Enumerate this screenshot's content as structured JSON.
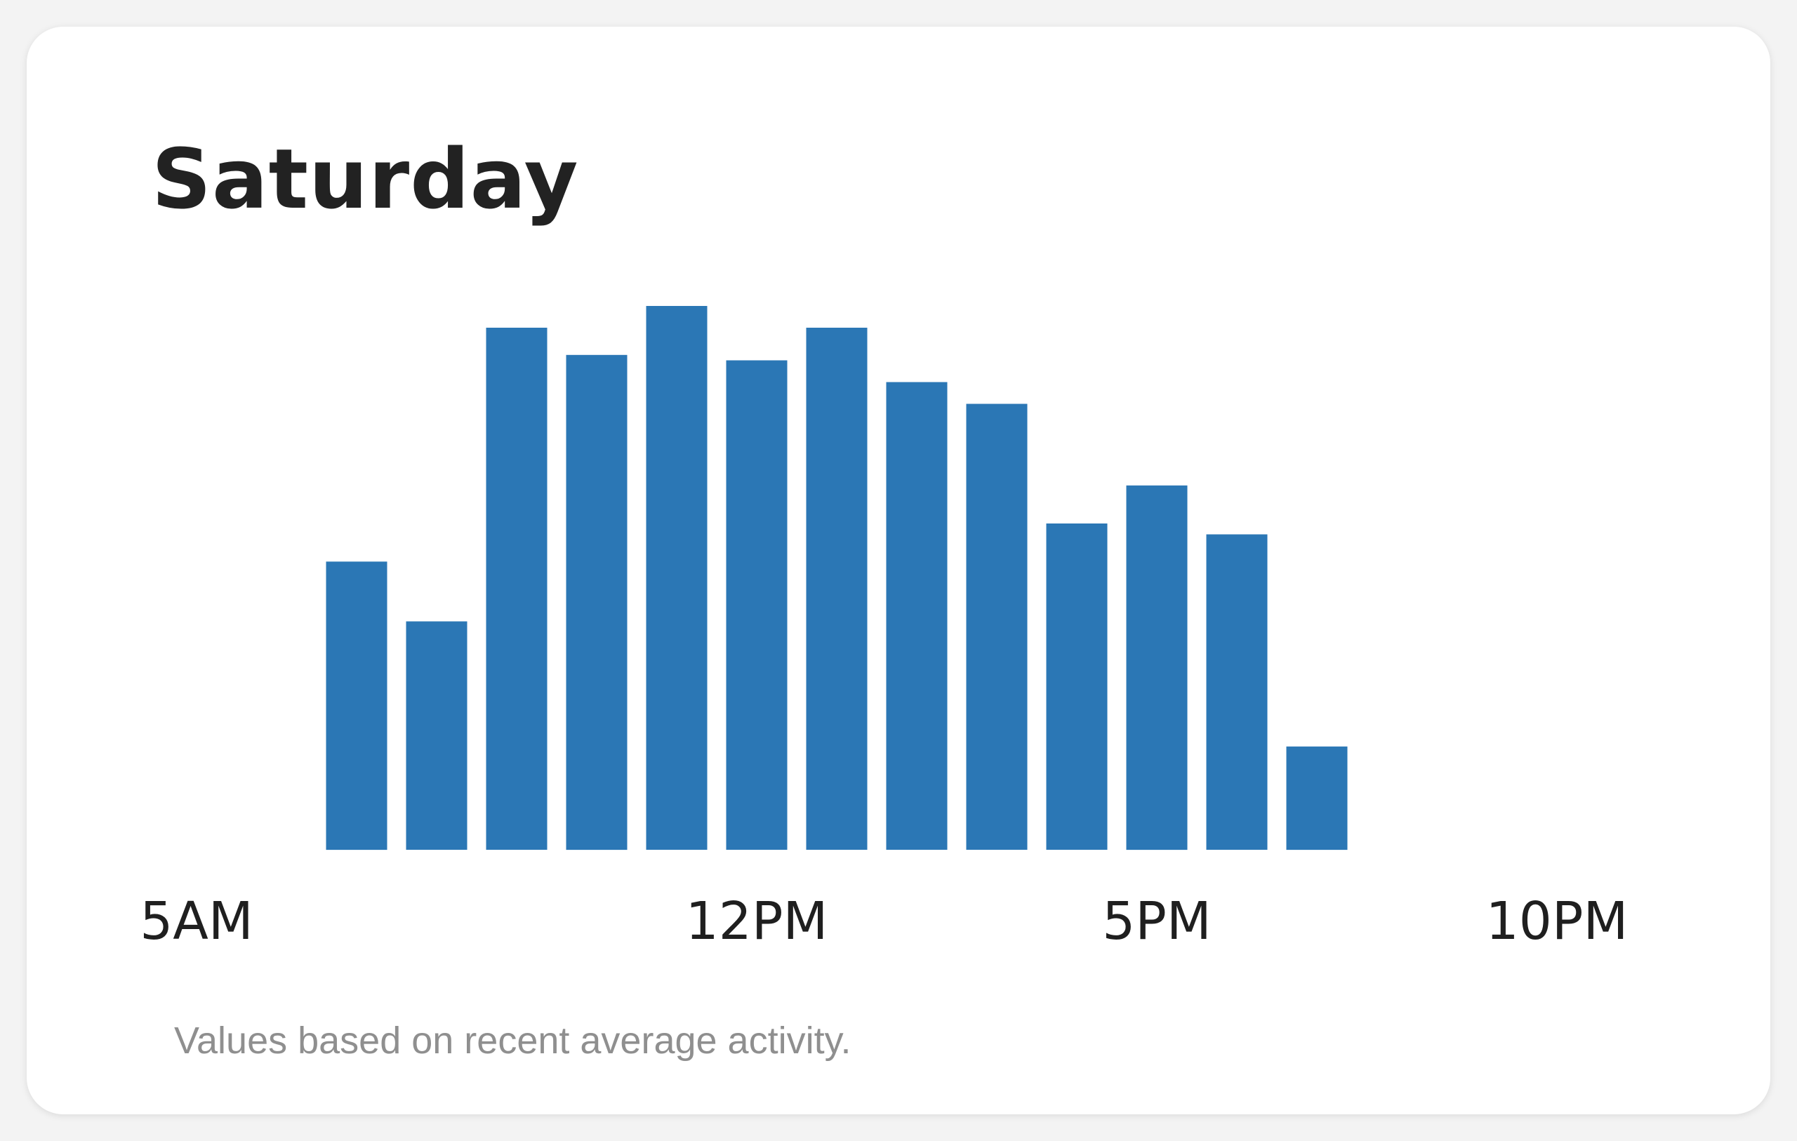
{
  "card": {
    "title": "Saturday",
    "footnote": "Values based on recent average activity."
  },
  "chart_data": {
    "type": "bar",
    "title": "Saturday",
    "bar_color": "#2b77b5",
    "tick_labels": [
      "5AM",
      "12PM",
      "5PM",
      "10PM"
    ],
    "x_start_hour": 5,
    "x_end_hour": 22,
    "hours": [
      7,
      8,
      9,
      10,
      11,
      12,
      13,
      14,
      15,
      16,
      17,
      18,
      19
    ],
    "values": [
      53,
      42,
      96,
      91,
      100,
      90,
      96,
      86,
      82,
      60,
      67,
      58,
      19
    ],
    "ylim": [
      0,
      100
    ],
    "grid": false,
    "legend": "none"
  }
}
